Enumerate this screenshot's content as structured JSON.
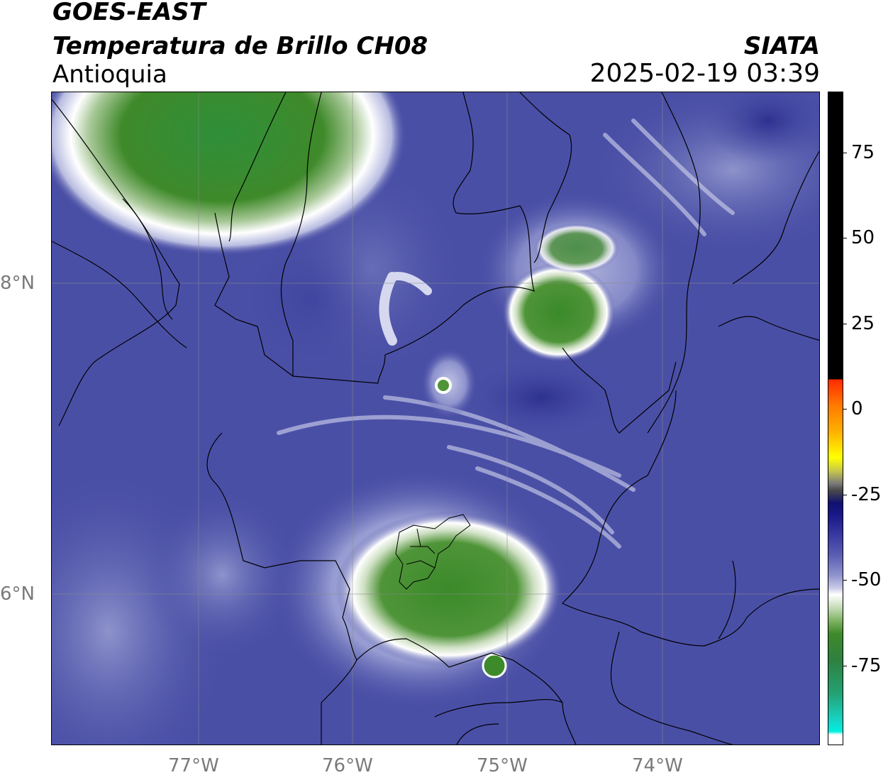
{
  "header": {
    "satellite": "GOES-EAST",
    "product": "Temperatura de Brillo CH08",
    "region": "Antioquia",
    "org": "SIATA",
    "timestamp": "2025-02-19 03:39"
  },
  "map": {
    "lon_labels": [
      "77°W",
      "76°W",
      "75°W",
      "74°W"
    ],
    "lat_labels": [
      "8°N",
      "6°N"
    ],
    "background_color": "#4a4fa6",
    "cold_cloud_color": "#3d8a2a",
    "grid": true
  },
  "colorbar": {
    "ticks": [
      "75",
      "50",
      "25",
      "0",
      "-25",
      "-50",
      "-75"
    ],
    "colors": {
      "warm": "#000000",
      "zero": "#ff8c00",
      "minus25": "#1a1a7a",
      "minus50": "#ffffff",
      "minus75": "#2e8b2e",
      "coldest": "#20e0d0"
    }
  }
}
